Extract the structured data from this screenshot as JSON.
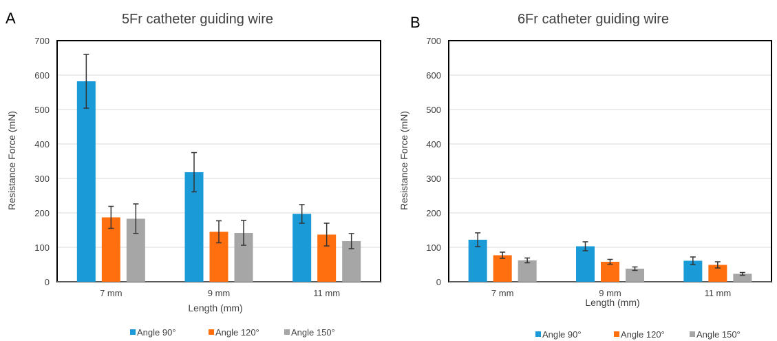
{
  "chart_data": [
    {
      "type": "bar",
      "panel": "A",
      "title": "5Fr catheter guiding wire",
      "xlabel": "Length (mm)",
      "ylabel": "Resistance Force (mN)",
      "ylim": [
        0,
        700
      ],
      "yticks": [
        0,
        100,
        200,
        300,
        400,
        500,
        600,
        700
      ],
      "categories": [
        "7 mm",
        "9 mm",
        "11 mm"
      ],
      "grid": true,
      "legend_position": "bottom",
      "series": [
        {
          "name": "Angle 90°",
          "color": "#1a9bd7",
          "values": [
            582,
            318,
            197
          ],
          "errors": [
            78,
            57,
            27
          ]
        },
        {
          "name": "Angle 120°",
          "color": "#ff6f0f",
          "values": [
            187,
            145,
            137
          ],
          "errors": [
            32,
            32,
            33
          ]
        },
        {
          "name": "Angle 150°",
          "color": "#a6a6a6",
          "values": [
            183,
            142,
            118
          ],
          "errors": [
            43,
            36,
            22
          ]
        }
      ]
    },
    {
      "type": "bar",
      "panel": "B",
      "title": "6Fr catheter guiding wire",
      "xlabel": "Length (mm)",
      "ylabel": "Resistance Force (mN)",
      "ylim": [
        0,
        700
      ],
      "yticks": [
        0,
        100,
        200,
        300,
        400,
        500,
        600,
        700
      ],
      "categories": [
        "7 mm",
        "9 mm",
        "11 mm"
      ],
      "grid": true,
      "legend_position": "bottom",
      "series": [
        {
          "name": "Angle 90°",
          "color": "#1a9bd7",
          "values": [
            122,
            103,
            61
          ],
          "errors": [
            20,
            13,
            11
          ]
        },
        {
          "name": "Angle 120°",
          "color": "#ff6f0f",
          "values": [
            77,
            58,
            49
          ],
          "errors": [
            9,
            7,
            9
          ]
        },
        {
          "name": "Angle 150°",
          "color": "#a6a6a6",
          "values": [
            62,
            38,
            23
          ],
          "errors": [
            7,
            5,
            4
          ]
        }
      ]
    }
  ]
}
